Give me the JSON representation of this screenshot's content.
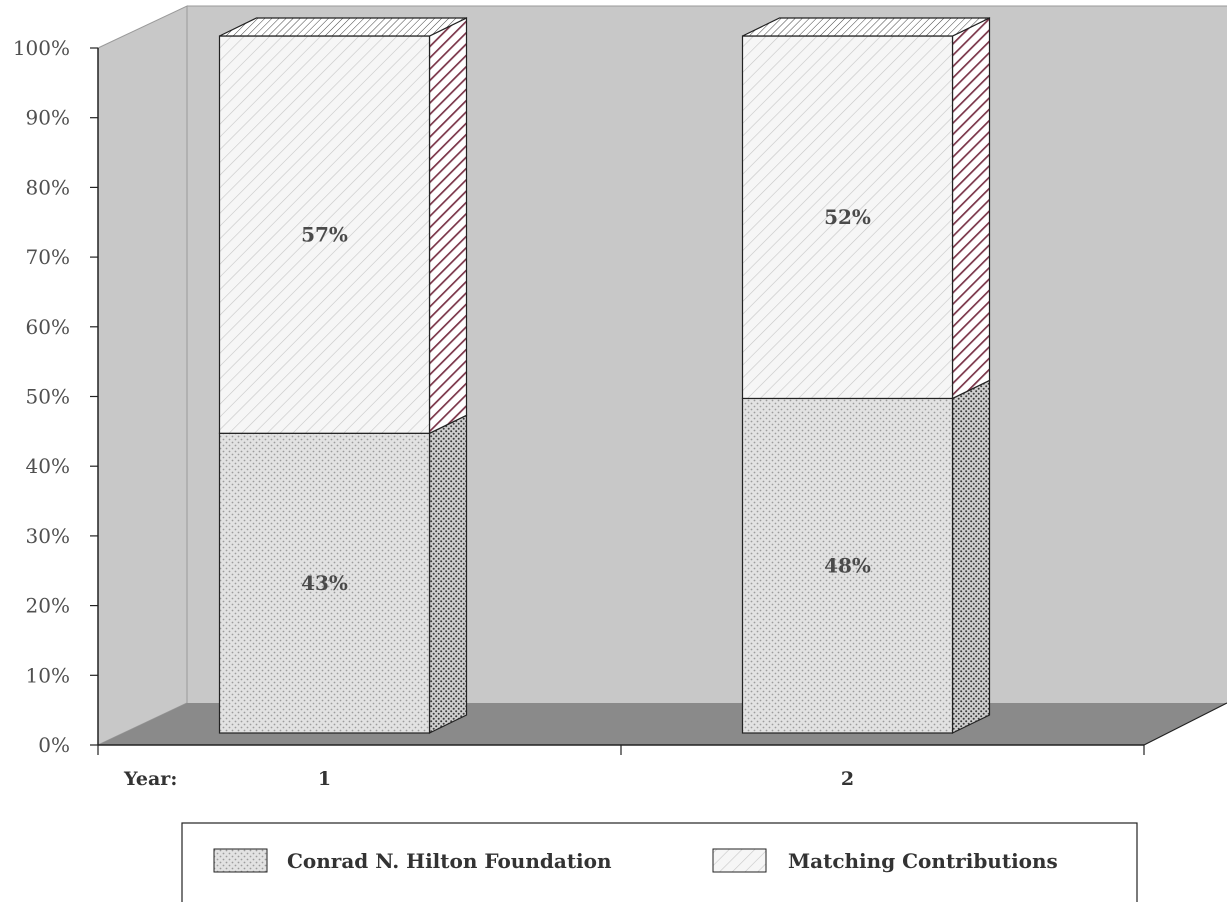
{
  "chart_data": {
    "type": "bar",
    "stacked": true,
    "three_d": true,
    "categories": [
      "1",
      "2"
    ],
    "category_axis_prefix": "Year:",
    "series": [
      {
        "name": "Conrad N. Hilton Foundation",
        "values": [
          43,
          48
        ],
        "labels": [
          "43%",
          "48%"
        ],
        "pattern": "crosshatch-dots"
      },
      {
        "name": "Matching Contributions",
        "values": [
          57,
          52
        ],
        "labels": [
          "57%",
          "52%"
        ],
        "pattern": "diagonal-lines"
      }
    ],
    "ylim": [
      0,
      100
    ],
    "yticks": [
      "0%",
      "10%",
      "20%",
      "30%",
      "40%",
      "50%",
      "60%",
      "70%",
      "80%",
      "90%",
      "100%"
    ],
    "legend_position": "bottom",
    "grid": false
  },
  "colors": {
    "back_wall": "#c8c8c8",
    "floor": "#8a8a8a",
    "top_side_stripe": "#7a3448"
  }
}
